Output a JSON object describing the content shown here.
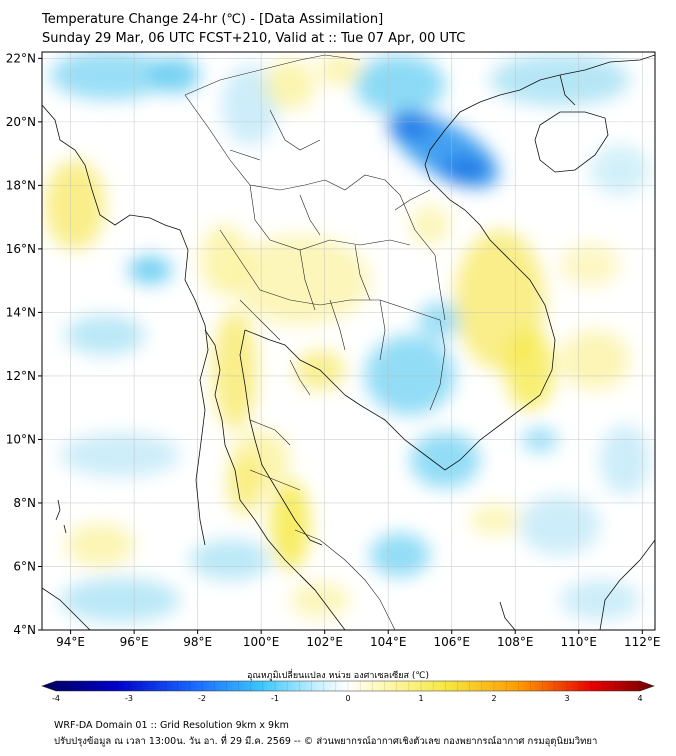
{
  "header": {
    "title": "Temperature Change 24-hr (℃) - [Data Assimilation]",
    "subtitle": "Sunday 29 Mar, 06 UTC FCST+210, Valid at :: Tue 07 Apr, 00 UTC"
  },
  "map": {
    "lat_ticks": [
      "22°N",
      "20°N",
      "18°N",
      "16°N",
      "14°N",
      "12°N",
      "10°N",
      "8°N",
      "6°N",
      "4°N"
    ],
    "lon_ticks": [
      "94°E",
      "96°E",
      "98°E",
      "100°E",
      "102°E",
      "104°E",
      "106°E",
      "108°E",
      "110°E",
      "112°E"
    ],
    "lat_range": [
      4,
      22.2
    ],
    "lon_range": [
      93.1,
      112.4
    ]
  },
  "colorbar": {
    "title": "อุณหภูมิเปลี่ยนแปลง หน่วย องศาเซลเซียส (℃)",
    "ticks": [
      "-4",
      "-3",
      "-2",
      "-1",
      "0",
      "1",
      "2",
      "3",
      "4"
    ],
    "min": -4,
    "max": 4,
    "colors": [
      "#00005a",
      "#0000c8",
      "#1a6aff",
      "#3cc8ff",
      "#c8f0ff",
      "#ffffff",
      "#fff8b0",
      "#f5e840",
      "#ff9a00",
      "#e60000",
      "#6e0000"
    ]
  },
  "footer": {
    "line1": "WRF-DA Domain 01 :: Grid Resolution 9km x 9km",
    "line2": "ปรับปรุงข้อมูล ณ เวลา 13:00น. วัน อา. ที่ 29 มี.ค. 2569 -- © ส่วนพยากรณ์อากาศเชิงตัวเลข กองพยากรณ์อากาศ กรมอุตุนิยมวิทยา"
  }
}
